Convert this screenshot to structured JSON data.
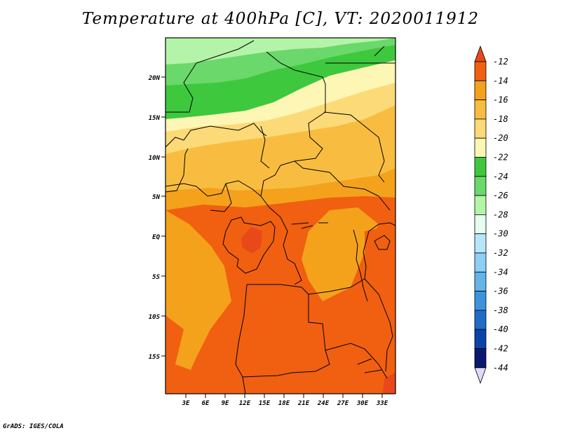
{
  "title": "Temperature at 400hPa [C], VT: 2020011912",
  "credit": "GrADS: IGES/COLA",
  "map": {
    "lat_labels": [
      "20N",
      "15N",
      "10N",
      "5N",
      "EQ",
      "5S",
      "10S",
      "15S"
    ],
    "lon_labels": [
      "3E",
      "6E",
      "9E",
      "12E",
      "15E",
      "18E",
      "21E",
      "24E",
      "27E",
      "30E",
      "33E"
    ]
  },
  "colorbar": {
    "labels": [
      "-12",
      "-14",
      "-16",
      "-18",
      "-20",
      "-22",
      "-24",
      "-26",
      "-28",
      "-30",
      "-32",
      "-34",
      "-36",
      "-38",
      "-40",
      "-42",
      "-44"
    ],
    "colors": [
      "#e8481a",
      "#f06010",
      "#f4a21c",
      "#f8bd40",
      "#fcda78",
      "#fef6b4",
      "#3ec83e",
      "#6ad86a",
      "#b4f4a8",
      "#e4fff0",
      "#b8e6f8",
      "#8ecff4",
      "#64b4ec",
      "#3c94dc",
      "#1e6cc8",
      "#0a44a8",
      "#0a1870",
      "#dcdcf8"
    ]
  }
}
